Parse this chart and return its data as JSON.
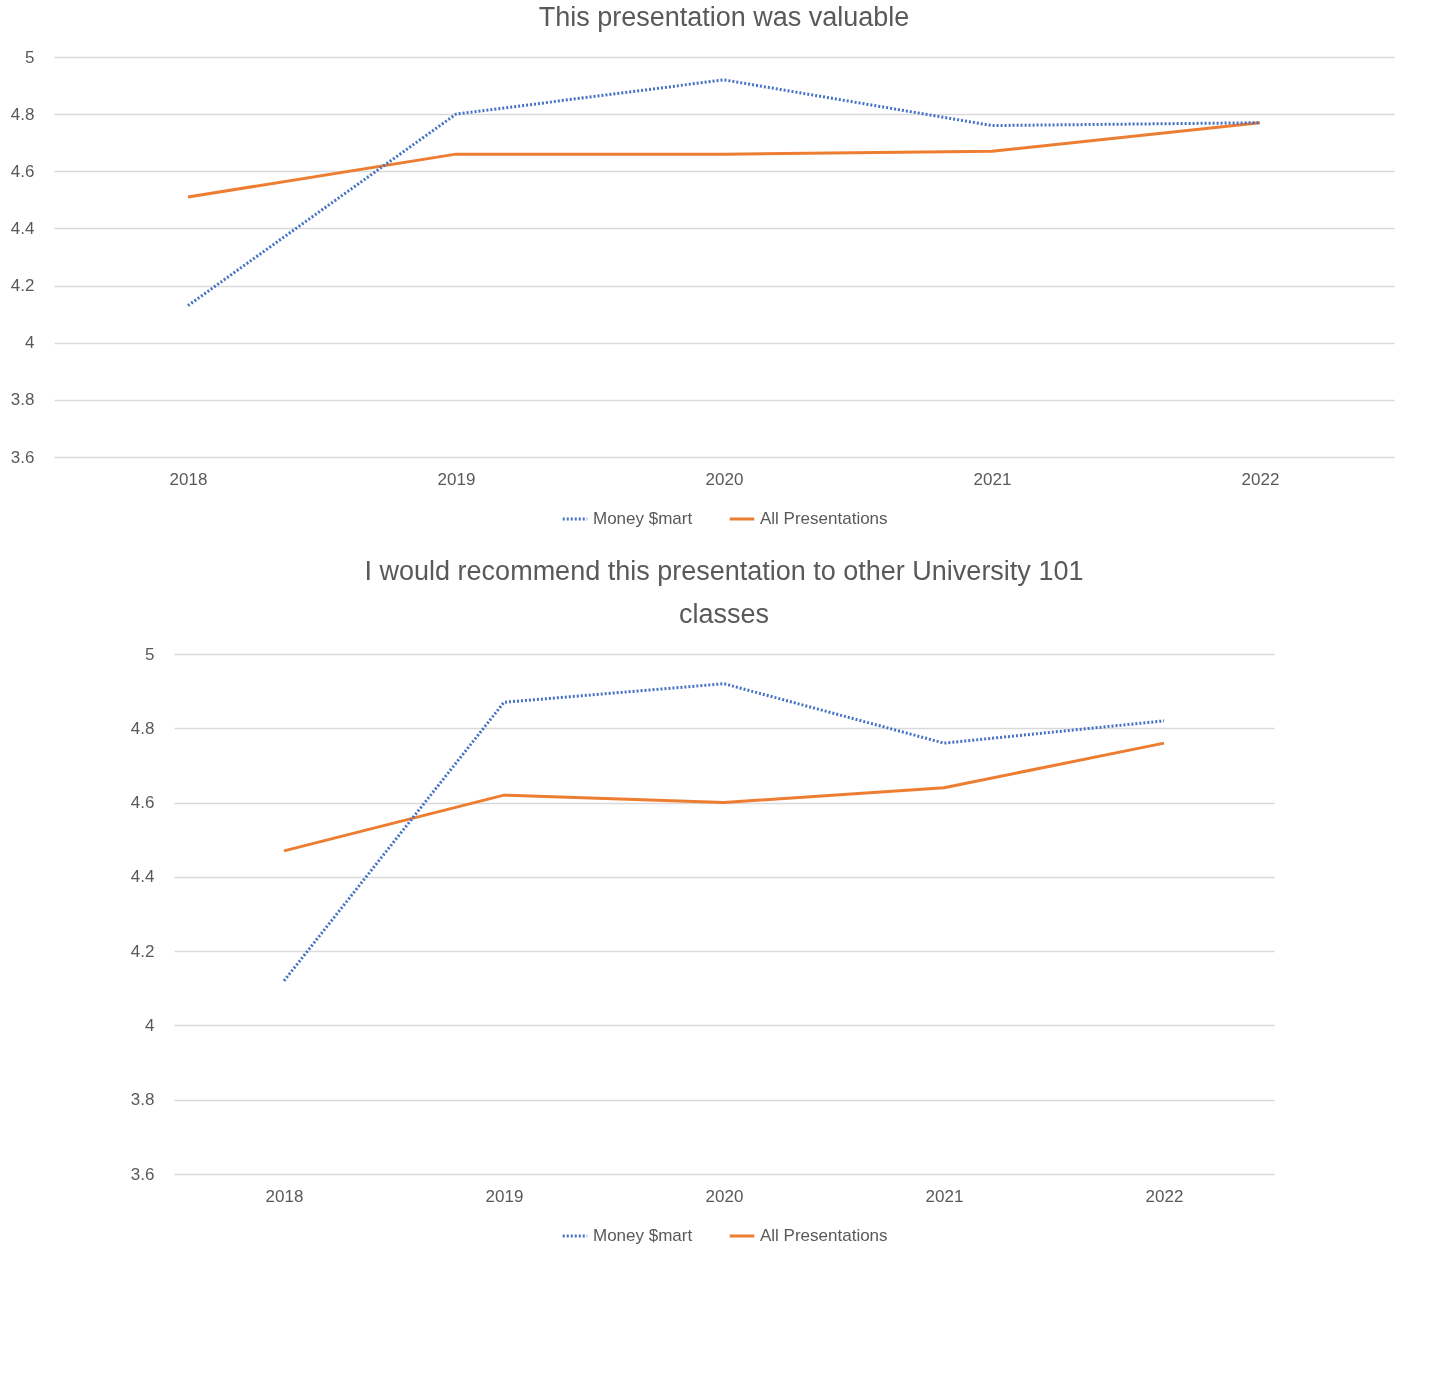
{
  "chart_data": [
    {
      "type": "line",
      "title": "This presentation was valuable",
      "categories": [
        "2018",
        "2019",
        "2020",
        "2021",
        "2022"
      ],
      "series": [
        {
          "name": "Money $mart",
          "color": "#4472c4",
          "line_style": "dotted",
          "values": [
            4.13,
            4.8,
            4.92,
            4.76,
            4.77
          ]
        },
        {
          "name": "All Presentations",
          "color": "#ed7d31",
          "line_style": "solid",
          "values": [
            4.51,
            4.66,
            4.66,
            4.67,
            4.77
          ]
        }
      ],
      "ylim": [
        3.6,
        5
      ],
      "yticks": [
        3.6,
        3.8,
        4,
        4.2,
        4.4,
        4.6,
        4.8,
        5
      ],
      "grid": "y",
      "legend": "bottom",
      "marker": "none"
    },
    {
      "type": "line",
      "title": "I would recommend this presentation to other University 101 classes",
      "categories": [
        "2018",
        "2019",
        "2020",
        "2021",
        "2022"
      ],
      "series": [
        {
          "name": "Money $mart",
          "color": "#4472c4",
          "line_style": "dotted",
          "values": [
            4.12,
            4.87,
            4.92,
            4.76,
            4.82
          ]
        },
        {
          "name": "All Presentations",
          "color": "#ed7d31",
          "line_style": "solid",
          "values": [
            4.47,
            4.62,
            4.6,
            4.64,
            4.76
          ]
        }
      ],
      "ylim": [
        3.6,
        5
      ],
      "yticks": [
        3.6,
        3.8,
        4,
        4.2,
        4.4,
        4.6,
        4.8,
        5
      ],
      "grid": "y",
      "legend": "bottom",
      "marker": "none"
    }
  ]
}
